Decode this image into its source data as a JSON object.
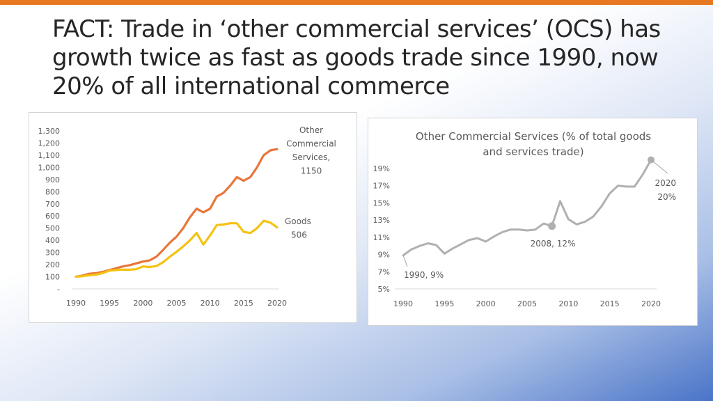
{
  "slide": {
    "title": "FACT: Trade in ‘other commercial services’ (OCS) has growth twice as fast as goods trade since 1990, now 20% of all international commerce"
  },
  "colors": {
    "accent_bar": "#e87722",
    "ocs_line": "#e8763a",
    "goods_line": "#f5c211",
    "pct_line": "#b0b0b0"
  },
  "chart_data": [
    {
      "type": "line",
      "title": "",
      "xlabel": "",
      "ylabel": "",
      "x": [
        1990,
        1991,
        1992,
        1993,
        1994,
        1995,
        1996,
        1997,
        1998,
        1999,
        2000,
        2001,
        2002,
        2003,
        2004,
        2005,
        2006,
        2007,
        2008,
        2009,
        2010,
        2011,
        2012,
        2013,
        2014,
        2015,
        2016,
        2017,
        2018,
        2019,
        2020
      ],
      "x_ticks": [
        "1990",
        "1995",
        "2000",
        "2005",
        "2010",
        "2015",
        "2020"
      ],
      "y_ticks": [
        "-",
        "100",
        "200",
        "300",
        "400",
        "500",
        "600",
        "700",
        "800",
        "900",
        "1,000",
        "1,100",
        "1,200",
        "1,300"
      ],
      "ylim": [
        0,
        1300
      ],
      "grid": false,
      "series": [
        {
          "label_lines": [
            "Other",
            "Commercial",
            "Services,",
            "1150"
          ],
          "values": [
            100,
            110,
            125,
            130,
            140,
            155,
            170,
            185,
            195,
            210,
            225,
            235,
            265,
            320,
            380,
            430,
            500,
            590,
            660,
            630,
            660,
            760,
            790,
            850,
            920,
            890,
            920,
            1000,
            1100,
            1140,
            1150
          ]
        },
        {
          "label_lines": [
            "Goods",
            "506"
          ],
          "values": [
            100,
            105,
            112,
            118,
            130,
            150,
            155,
            158,
            158,
            162,
            185,
            180,
            188,
            220,
            265,
            305,
            350,
            400,
            460,
            365,
            440,
            525,
            530,
            540,
            540,
            470,
            460,
            500,
            560,
            545,
            506
          ]
        }
      ]
    },
    {
      "type": "line",
      "title_lines": [
        "Other Commercial Services (% of total goods",
        "and services trade)"
      ],
      "xlabel": "",
      "ylabel": "",
      "x": [
        1990,
        1991,
        1992,
        1993,
        1994,
        1995,
        1996,
        1997,
        1998,
        1999,
        2000,
        2001,
        2002,
        2003,
        2004,
        2005,
        2006,
        2007,
        2008,
        2009,
        2010,
        2011,
        2012,
        2013,
        2014,
        2015,
        2016,
        2017,
        2018,
        2019,
        2020
      ],
      "x_ticks": [
        "1990",
        "1995",
        "2000",
        "2005",
        "2010",
        "2015",
        "2020"
      ],
      "y_ticks": [
        "5%",
        "7%",
        "9%",
        "11%",
        "13%",
        "15%",
        "17%",
        "19%"
      ],
      "ylim": [
        5,
        20
      ],
      "grid": false,
      "series": [
        {
          "values": [
            8.9,
            9.6,
            10.0,
            10.3,
            10.1,
            9.1,
            9.7,
            10.2,
            10.7,
            10.9,
            10.5,
            11.1,
            11.6,
            11.9,
            11.9,
            11.8,
            11.9,
            12.6,
            12.3,
            15.2,
            13.1,
            12.5,
            12.8,
            13.4,
            14.6,
            16.1,
            17.0,
            16.9,
            16.9,
            18.3,
            20.0
          ]
        }
      ],
      "annotations": [
        {
          "year": 1990,
          "text": "1990, 9%"
        },
        {
          "year": 2008,
          "text": "2008, 12%"
        },
        {
          "year": 2020,
          "text_lines": [
            "2020",
            "20%"
          ]
        }
      ]
    }
  ]
}
